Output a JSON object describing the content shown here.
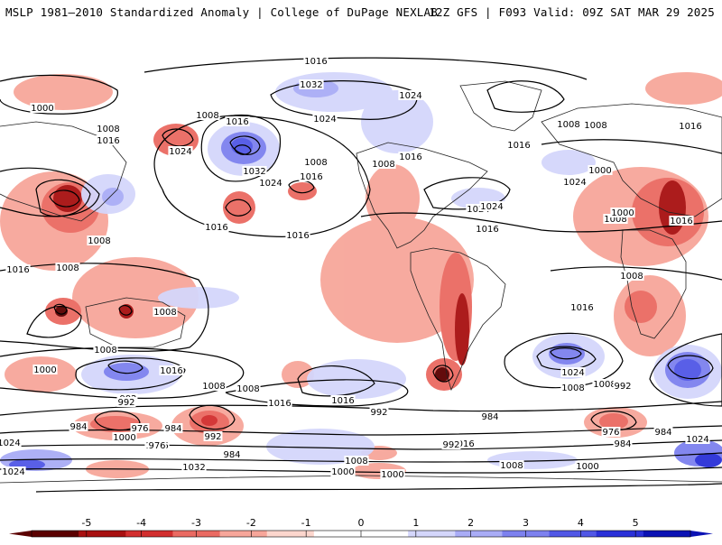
{
  "header": {
    "title_left": "MSLP 1981–2010 Standardized Anomaly | College of DuPage NEXLAB",
    "title_right": "12Z GFS | F093 Valid: 09Z SAT MAR 29 2025"
  },
  "map": {
    "isobar_labels": [
      "1016",
      "1032",
      "1024",
      "1024",
      "1000",
      "1008",
      "1016",
      "1024",
      "1008",
      "1016",
      "1016",
      "1008",
      "1016",
      "1008",
      "1032",
      "1024",
      "1008",
      "1016",
      "1008",
      "1016",
      "1024",
      "1016",
      "1024",
      "1000",
      "1008",
      "1016",
      "1008",
      "1016",
      "1016",
      "1016",
      "1008",
      "1016",
      "1008",
      "1008",
      "1008",
      "1016",
      "1024",
      "1000",
      "1008",
      "992",
      "1008",
      "1016",
      "1016",
      "1008",
      "1024",
      "1000",
      "1008",
      "992",
      "992",
      "984",
      "992",
      "984",
      "976",
      "984",
      "984",
      "1000",
      "1016",
      "1024",
      "992",
      "976",
      "1024",
      "1032",
      "1008",
      "1000",
      "1000",
      "1008",
      "1000",
      "1016",
      "984",
      "992",
      "976",
      "984",
      "1024"
    ]
  },
  "colorbar": {
    "tick_labels": [
      "-5",
      "-4",
      "-3",
      "-2",
      "-1",
      "0",
      "1",
      "2",
      "3",
      "4",
      "5"
    ],
    "colors": [
      "#5b0000",
      "#a81010",
      "#d22e2e",
      "#ea6a62",
      "#f7a69a",
      "#fcd6cd",
      "#ffffff",
      "#ffffff",
      "#d4d6fb",
      "#a9acf6",
      "#7d81ef",
      "#5157e6",
      "#2a30d8",
      "#0b12b4"
    ]
  }
}
